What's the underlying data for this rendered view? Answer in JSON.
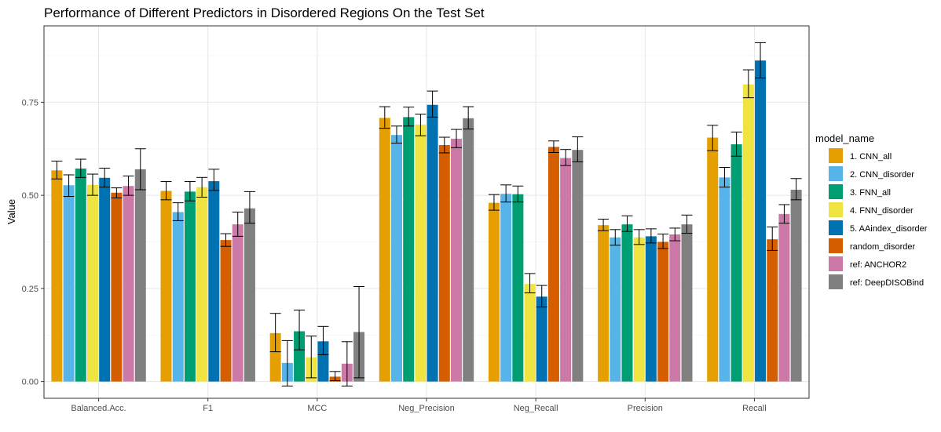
{
  "chart_data": {
    "type": "bar",
    "title": "Performance of Different Predictors in Disordered Regions On the Test Set",
    "xlabel": "",
    "ylabel": "Value",
    "ylim": [
      -0.045,
      0.955
    ],
    "yticks": [
      0.0,
      0.25,
      0.5,
      0.75
    ],
    "ytick_labels": [
      "0.00",
      "0.25",
      "0.50",
      "0.75"
    ],
    "grid": true,
    "error_bars": true,
    "legend_title": "model_name",
    "legend_position": "right",
    "categories": [
      "Balanced.Acc.",
      "F1",
      "MCC",
      "Neg_Precision",
      "Neg_Recall",
      "Precision",
      "Recall"
    ],
    "series": [
      {
        "name": "1. CNN_all",
        "color": "#E69F00",
        "values": [
          0.567,
          0.512,
          0.13,
          0.708,
          0.48,
          0.42,
          0.655
        ],
        "lower": [
          0.544,
          0.488,
          0.08,
          0.68,
          0.46,
          0.405,
          0.62
        ],
        "upper": [
          0.592,
          0.537,
          0.183,
          0.738,
          0.502,
          0.436,
          0.688
        ]
      },
      {
        "name": "2. CNN_disorder",
        "color": "#56B4E9",
        "values": [
          0.527,
          0.455,
          0.05,
          0.662,
          0.504,
          0.387,
          0.548
        ],
        "lower": [
          0.497,
          0.432,
          -0.012,
          0.64,
          0.482,
          0.366,
          0.522
        ],
        "upper": [
          0.555,
          0.48,
          0.11,
          0.686,
          0.528,
          0.408,
          0.575
        ]
      },
      {
        "name": "3. FNN_all",
        "color": "#009E73",
        "values": [
          0.572,
          0.51,
          0.135,
          0.71,
          0.503,
          0.422,
          0.637
        ],
        "lower": [
          0.548,
          0.485,
          0.085,
          0.686,
          0.482,
          0.403,
          0.605
        ],
        "upper": [
          0.597,
          0.537,
          0.192,
          0.737,
          0.525,
          0.445,
          0.67
        ]
      },
      {
        "name": "4. FNN_disorder",
        "color": "#F0E442",
        "values": [
          0.528,
          0.522,
          0.065,
          0.69,
          0.262,
          0.387,
          0.798
        ],
        "lower": [
          0.5,
          0.495,
          0.01,
          0.66,
          0.238,
          0.368,
          0.762
        ],
        "upper": [
          0.557,
          0.548,
          0.122,
          0.718,
          0.29,
          0.408,
          0.837
        ]
      },
      {
        "name": "5. AAindex_disorder",
        "color": "#0072B2",
        "values": [
          0.547,
          0.538,
          0.108,
          0.743,
          0.228,
          0.39,
          0.862
        ],
        "lower": [
          0.522,
          0.513,
          0.072,
          0.71,
          0.2,
          0.372,
          0.815
        ],
        "upper": [
          0.573,
          0.57,
          0.148,
          0.78,
          0.258,
          0.41,
          0.91
        ]
      },
      {
        "name": "random_disorder",
        "color": "#D55E00",
        "values": [
          0.507,
          0.38,
          0.013,
          0.635,
          0.63,
          0.375,
          0.382
        ],
        "lower": [
          0.493,
          0.363,
          0.002,
          0.614,
          0.615,
          0.357,
          0.352
        ],
        "upper": [
          0.52,
          0.397,
          0.027,
          0.656,
          0.646,
          0.396,
          0.415
        ]
      },
      {
        "name": "ref: ANCHOR2",
        "color": "#CC79A7",
        "values": [
          0.525,
          0.422,
          0.048,
          0.652,
          0.6,
          0.395,
          0.45
        ],
        "lower": [
          0.5,
          0.39,
          -0.012,
          0.628,
          0.58,
          0.378,
          0.425
        ],
        "upper": [
          0.552,
          0.455,
          0.107,
          0.677,
          0.623,
          0.412,
          0.475
        ]
      },
      {
        "name": "ref: DeepDISOBind",
        "color": "#808080",
        "values": [
          0.57,
          0.465,
          0.133,
          0.707,
          0.622,
          0.422,
          0.515
        ],
        "lower": [
          0.515,
          0.425,
          0.01,
          0.678,
          0.59,
          0.398,
          0.488
        ],
        "upper": [
          0.625,
          0.51,
          0.255,
          0.738,
          0.657,
          0.447,
          0.545
        ]
      }
    ]
  }
}
